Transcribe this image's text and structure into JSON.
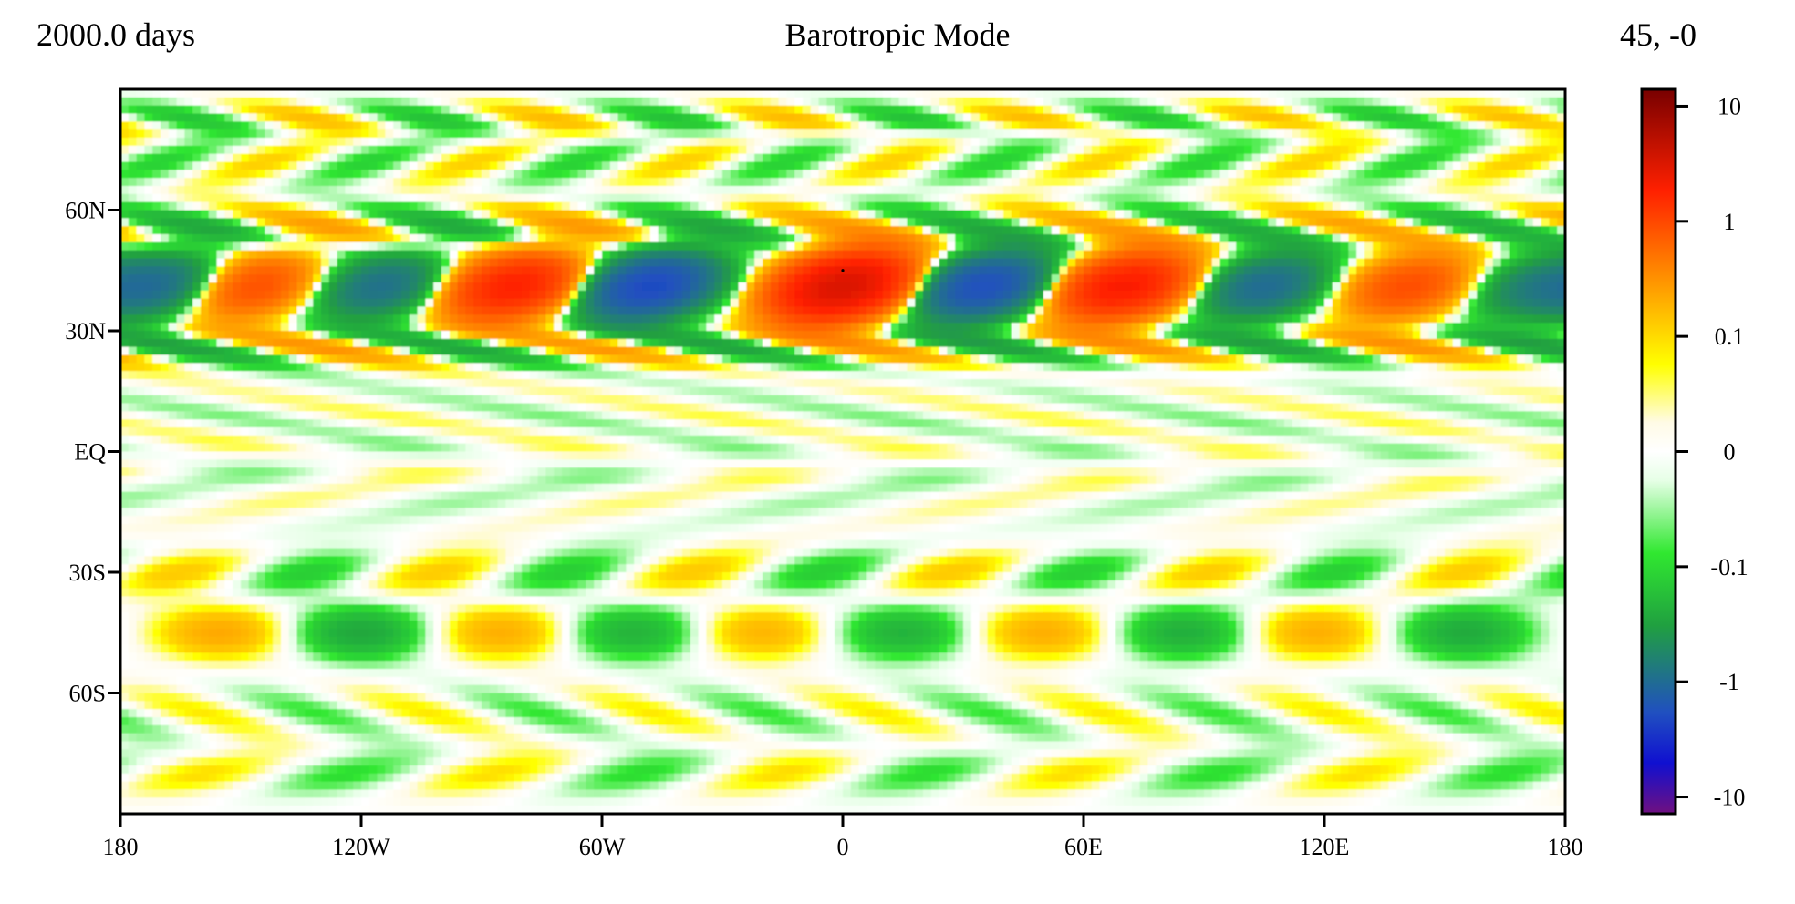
{
  "header": {
    "left": "2000.0 days",
    "title": "Barotropic Mode",
    "right": "45, -0"
  },
  "chart_data": {
    "type": "heatmap",
    "title": "Barotropic Mode",
    "xlabel": "",
    "ylabel": "",
    "x_range": [
      -180,
      180
    ],
    "y_range": [
      -90,
      90
    ],
    "x_ticks": [
      {
        "value": -180,
        "label": "180"
      },
      {
        "value": -120,
        "label": "120W"
      },
      {
        "value": -60,
        "label": "60W"
      },
      {
        "value": 0,
        "label": "0"
      },
      {
        "value": 60,
        "label": "60E"
      },
      {
        "value": 120,
        "label": "120E"
      },
      {
        "value": 180,
        "label": "180"
      }
    ],
    "y_ticks": [
      {
        "value": 60,
        "label": "60N"
      },
      {
        "value": 30,
        "label": "30N"
      },
      {
        "value": 0,
        "label": "EQ"
      },
      {
        "value": -30,
        "label": "30S"
      },
      {
        "value": -60,
        "label": "60S"
      }
    ],
    "colorbar": {
      "scale": "symlog",
      "range": [
        -14,
        14
      ],
      "ticks": [
        {
          "value": 10,
          "label": "10"
        },
        {
          "value": 1,
          "label": "1"
        },
        {
          "value": 0.1,
          "label": "0.1"
        },
        {
          "value": 0,
          "label": "0"
        },
        {
          "value": -0.1,
          "label": "-0.1"
        },
        {
          "value": -1,
          "label": "-1"
        },
        {
          "value": -10,
          "label": "-10"
        }
      ],
      "colors": {
        "pos_1": "#fffbe6",
        "pos_2": "#ffff00",
        "pos_3": "#ff9000",
        "pos_4": "#ff2000",
        "pos_5": "#780000",
        "zero": "#ffffff",
        "neg_1": "#e6ffe6",
        "neg_2": "#30e830",
        "neg_3": "#20a040",
        "neg_4": "#2050c0",
        "neg_5": "#1010d0",
        "neg_6": "#701080"
      }
    },
    "field_features": {
      "main_band": {
        "center_lat": 41,
        "lobe_lons": [
          -170,
          -147,
          -115,
          -82,
          -48,
          0,
          35,
          70,
          105,
          141,
          172
        ],
        "lobe_values": [
          -0.9,
          0.9,
          -0.9,
          1.8,
          -2.0,
          3.2,
          -1.8,
          2.0,
          -1.0,
          0.9,
          -0.6
        ]
      },
      "southern_band": {
        "center_lat": -45,
        "lobe_lons": [
          -155,
          -120,
          -85,
          -52,
          -20,
          15,
          50,
          85,
          118,
          155
        ],
        "lobe_values": [
          0.22,
          -0.28,
          0.2,
          -0.22,
          0.18,
          -0.22,
          0.2,
          -0.24,
          0.2,
          -0.26
        ]
      },
      "marker": {
        "lon": 0,
        "lat": 45
      }
    }
  }
}
